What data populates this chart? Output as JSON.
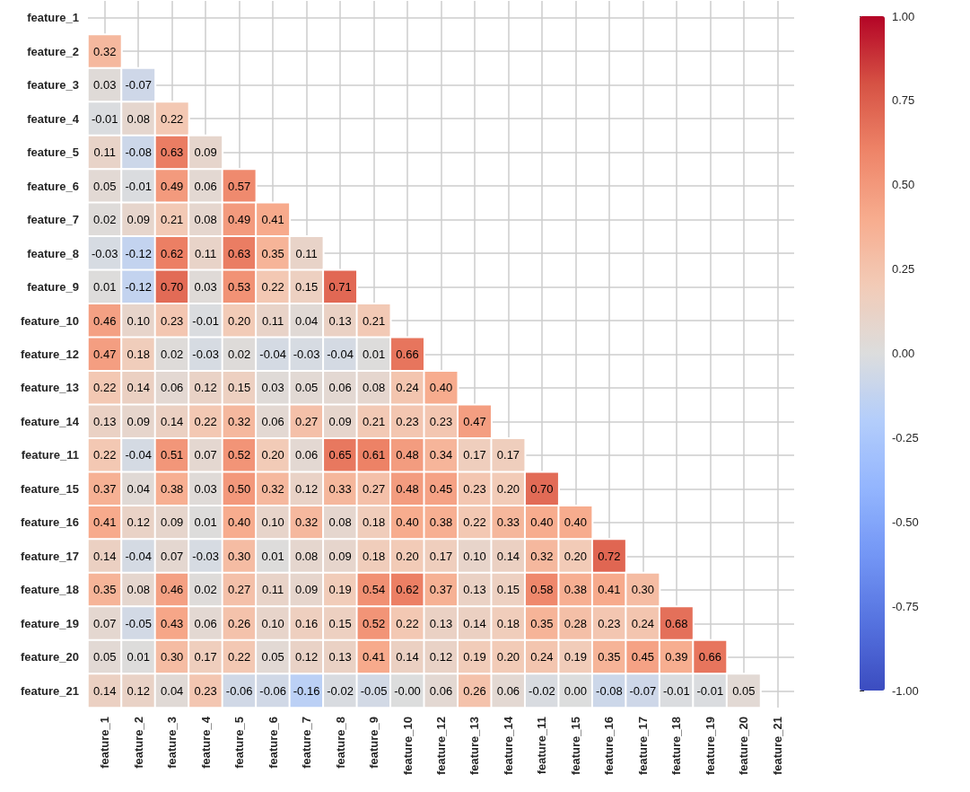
{
  "chart_data": {
    "type": "heatmap",
    "categories": [
      "feature_1",
      "feature_2",
      "feature_3",
      "feature_4",
      "feature_5",
      "feature_6",
      "feature_7",
      "feature_8",
      "feature_9",
      "feature_10",
      "feature_12",
      "feature_13",
      "feature_14",
      "feature_11",
      "feature_15",
      "feature_16",
      "feature_17",
      "feature_18",
      "feature_19",
      "feature_20",
      "feature_21"
    ],
    "y_categories": [
      "feature_1",
      "feature_2",
      "feature_3",
      "feature_4",
      "feature_5",
      "feature_6",
      "feature_7",
      "feature_8",
      "feature_9",
      "feature_10",
      "feature_12",
      "feature_13",
      "feature_14",
      "feature_11",
      "feature_15",
      "feature_16",
      "feature_17",
      "feature_18",
      "feature_19",
      "feature_20",
      "feature_21"
    ],
    "cells": [
      [
        null,
        null,
        null,
        null,
        null,
        null,
        null,
        null,
        null,
        null,
        null,
        null,
        null,
        null,
        null,
        null,
        null,
        null,
        null,
        null,
        null
      ],
      [
        0.32,
        null,
        null,
        null,
        null,
        null,
        null,
        null,
        null,
        null,
        null,
        null,
        null,
        null,
        null,
        null,
        null,
        null,
        null,
        null,
        null
      ],
      [
        0.03,
        -0.07,
        null,
        null,
        null,
        null,
        null,
        null,
        null,
        null,
        null,
        null,
        null,
        null,
        null,
        null,
        null,
        null,
        null,
        null,
        null
      ],
      [
        -0.01,
        0.08,
        0.22,
        null,
        null,
        null,
        null,
        null,
        null,
        null,
        null,
        null,
        null,
        null,
        null,
        null,
        null,
        null,
        null,
        null,
        null
      ],
      [
        0.11,
        -0.08,
        0.63,
        0.09,
        null,
        null,
        null,
        null,
        null,
        null,
        null,
        null,
        null,
        null,
        null,
        null,
        null,
        null,
        null,
        null,
        null
      ],
      [
        0.05,
        -0.01,
        0.49,
        0.06,
        0.57,
        null,
        null,
        null,
        null,
        null,
        null,
        null,
        null,
        null,
        null,
        null,
        null,
        null,
        null,
        null,
        null
      ],
      [
        0.02,
        0.09,
        0.21,
        0.08,
        0.49,
        0.41,
        null,
        null,
        null,
        null,
        null,
        null,
        null,
        null,
        null,
        null,
        null,
        null,
        null,
        null,
        null
      ],
      [
        -0.03,
        -0.12,
        0.62,
        0.11,
        0.63,
        0.35,
        0.11,
        null,
        null,
        null,
        null,
        null,
        null,
        null,
        null,
        null,
        null,
        null,
        null,
        null,
        null
      ],
      [
        0.01,
        -0.12,
        0.7,
        0.03,
        0.53,
        0.22,
        0.15,
        0.71,
        null,
        null,
        null,
        null,
        null,
        null,
        null,
        null,
        null,
        null,
        null,
        null,
        null
      ],
      [
        0.46,
        0.1,
        0.23,
        -0.01,
        0.2,
        0.11,
        0.04,
        0.13,
        0.21,
        null,
        null,
        null,
        null,
        null,
        null,
        null,
        null,
        null,
        null,
        null,
        null
      ],
      [
        0.47,
        0.18,
        0.02,
        -0.03,
        0.02,
        -0.04,
        -0.03,
        -0.04,
        0.01,
        0.66,
        null,
        null,
        null,
        null,
        null,
        null,
        null,
        null,
        null,
        null,
        null
      ],
      [
        0.22,
        0.14,
        0.06,
        0.12,
        0.15,
        0.03,
        0.05,
        0.06,
        0.08,
        0.24,
        0.4,
        null,
        null,
        null,
        null,
        null,
        null,
        null,
        null,
        null,
        null
      ],
      [
        0.13,
        0.09,
        0.14,
        0.22,
        0.32,
        0.06,
        0.27,
        0.09,
        0.21,
        0.23,
        0.23,
        0.47,
        null,
        null,
        null,
        null,
        null,
        null,
        null,
        null,
        null
      ],
      [
        0.22,
        -0.04,
        0.51,
        0.07,
        0.52,
        0.2,
        0.06,
        0.65,
        0.61,
        0.48,
        0.34,
        0.17,
        0.17,
        null,
        null,
        null,
        null,
        null,
        null,
        null,
        null
      ],
      [
        0.37,
        0.04,
        0.38,
        0.03,
        0.5,
        0.32,
        0.12,
        0.33,
        0.27,
        0.48,
        0.45,
        0.23,
        0.2,
        0.7,
        null,
        null,
        null,
        null,
        null,
        null,
        null
      ],
      [
        0.41,
        0.12,
        0.09,
        0.01,
        0.4,
        0.1,
        0.32,
        0.08,
        0.18,
        0.4,
        0.38,
        0.22,
        0.33,
        0.4,
        0.4,
        null,
        null,
        null,
        null,
        null,
        null
      ],
      [
        0.14,
        -0.04,
        0.07,
        -0.03,
        0.3,
        0.01,
        0.08,
        0.09,
        0.18,
        0.2,
        0.17,
        0.1,
        0.14,
        0.32,
        0.2,
        0.72,
        null,
        null,
        null,
        null,
        null
      ],
      [
        0.35,
        0.08,
        0.46,
        0.02,
        0.27,
        0.11,
        0.09,
        0.19,
        0.54,
        0.62,
        0.37,
        0.13,
        0.15,
        0.58,
        0.38,
        0.41,
        0.3,
        null,
        null,
        null,
        null
      ],
      [
        0.07,
        -0.05,
        0.43,
        0.06,
        0.26,
        0.1,
        0.16,
        0.15,
        0.52,
        0.22,
        0.13,
        0.14,
        0.18,
        0.35,
        0.28,
        0.23,
        0.24,
        0.68,
        null,
        null,
        null
      ],
      [
        0.05,
        0.01,
        0.3,
        0.17,
        0.22,
        0.05,
        0.12,
        0.13,
        0.41,
        0.14,
        0.12,
        0.19,
        0.2,
        0.24,
        0.19,
        0.35,
        0.45,
        0.39,
        0.66,
        null,
        null
      ],
      [
        0.14,
        0.12,
        0.04,
        0.23,
        -0.06,
        -0.06,
        -0.16,
        -0.02,
        -0.05,
        0,
        0.06,
        0.26,
        0.06,
        -0.02,
        0.0,
        -0.08,
        -0.07,
        -0.01,
        -0.01,
        0.05,
        null
      ]
    ],
    "cell_labels": [
      [
        null,
        null,
        null,
        null,
        null,
        null,
        null,
        null,
        null,
        null,
        null,
        null,
        null,
        null,
        null,
        null,
        null,
        null,
        null,
        null,
        null
      ],
      [
        "0.32",
        null,
        null,
        null,
        null,
        null,
        null,
        null,
        null,
        null,
        null,
        null,
        null,
        null,
        null,
        null,
        null,
        null,
        null,
        null,
        null
      ],
      [
        "0.03",
        "-0.07",
        null,
        null,
        null,
        null,
        null,
        null,
        null,
        null,
        null,
        null,
        null,
        null,
        null,
        null,
        null,
        null,
        null,
        null,
        null
      ],
      [
        "-0.01",
        "0.08",
        "0.22",
        null,
        null,
        null,
        null,
        null,
        null,
        null,
        null,
        null,
        null,
        null,
        null,
        null,
        null,
        null,
        null,
        null,
        null
      ],
      [
        "0.11",
        "-0.08",
        "0.63",
        "0.09",
        null,
        null,
        null,
        null,
        null,
        null,
        null,
        null,
        null,
        null,
        null,
        null,
        null,
        null,
        null,
        null,
        null
      ],
      [
        "0.05",
        "-0.01",
        "0.49",
        "0.06",
        "0.57",
        null,
        null,
        null,
        null,
        null,
        null,
        null,
        null,
        null,
        null,
        null,
        null,
        null,
        null,
        null,
        null
      ],
      [
        "0.02",
        "0.09",
        "0.21",
        "0.08",
        "0.49",
        "0.41",
        null,
        null,
        null,
        null,
        null,
        null,
        null,
        null,
        null,
        null,
        null,
        null,
        null,
        null,
        null
      ],
      [
        "-0.03",
        "-0.12",
        "0.62",
        "0.11",
        "0.63",
        "0.35",
        "0.11",
        null,
        null,
        null,
        null,
        null,
        null,
        null,
        null,
        null,
        null,
        null,
        null,
        null,
        null
      ],
      [
        "0.01",
        "-0.12",
        "0.70",
        "0.03",
        "0.53",
        "0.22",
        "0.15",
        "0.71",
        null,
        null,
        null,
        null,
        null,
        null,
        null,
        null,
        null,
        null,
        null,
        null,
        null
      ],
      [
        "0.46",
        "0.10",
        "0.23",
        "-0.01",
        "0.20",
        "0.11",
        "0.04",
        "0.13",
        "0.21",
        null,
        null,
        null,
        null,
        null,
        null,
        null,
        null,
        null,
        null,
        null,
        null
      ],
      [
        "0.47",
        "0.18",
        "0.02",
        "-0.03",
        "0.02",
        "-0.04",
        "-0.03",
        "-0.04",
        "0.01",
        "0.66",
        null,
        null,
        null,
        null,
        null,
        null,
        null,
        null,
        null,
        null,
        null
      ],
      [
        "0.22",
        "0.14",
        "0.06",
        "0.12",
        "0.15",
        "0.03",
        "0.05",
        "0.06",
        "0.08",
        "0.24",
        "0.40",
        null,
        null,
        null,
        null,
        null,
        null,
        null,
        null,
        null,
        null
      ],
      [
        "0.13",
        "0.09",
        "0.14",
        "0.22",
        "0.32",
        "0.06",
        "0.27",
        "0.09",
        "0.21",
        "0.23",
        "0.23",
        "0.47",
        null,
        null,
        null,
        null,
        null,
        null,
        null,
        null,
        null
      ],
      [
        "0.22",
        "-0.04",
        "0.51",
        "0.07",
        "0.52",
        "0.20",
        "0.06",
        "0.65",
        "0.61",
        "0.48",
        "0.34",
        "0.17",
        "0.17",
        null,
        null,
        null,
        null,
        null,
        null,
        null,
        null
      ],
      [
        "0.37",
        "0.04",
        "0.38",
        "0.03",
        "0.50",
        "0.32",
        "0.12",
        "0.33",
        "0.27",
        "0.48",
        "0.45",
        "0.23",
        "0.20",
        "0.70",
        null,
        null,
        null,
        null,
        null,
        null,
        null
      ],
      [
        "0.41",
        "0.12",
        "0.09",
        "0.01",
        "0.40",
        "0.10",
        "0.32",
        "0.08",
        "0.18",
        "0.40",
        "0.38",
        "0.22",
        "0.33",
        "0.40",
        "0.40",
        null,
        null,
        null,
        null,
        null,
        null
      ],
      [
        "0.14",
        "-0.04",
        "0.07",
        "-0.03",
        "0.30",
        "0.01",
        "0.08",
        "0.09",
        "0.18",
        "0.20",
        "0.17",
        "0.10",
        "0.14",
        "0.32",
        "0.20",
        "0.72",
        null,
        null,
        null,
        null,
        null
      ],
      [
        "0.35",
        "0.08",
        "0.46",
        "0.02",
        "0.27",
        "0.11",
        "0.09",
        "0.19",
        "0.54",
        "0.62",
        "0.37",
        "0.13",
        "0.15",
        "0.58",
        "0.38",
        "0.41",
        "0.30",
        null,
        null,
        null,
        null
      ],
      [
        "0.07",
        "-0.05",
        "0.43",
        "0.06",
        "0.26",
        "0.10",
        "0.16",
        "0.15",
        "0.52",
        "0.22",
        "0.13",
        "0.14",
        "0.18",
        "0.35",
        "0.28",
        "0.23",
        "0.24",
        "0.68",
        null,
        null,
        null
      ],
      [
        "0.05",
        "0.01",
        "0.30",
        "0.17",
        "0.22",
        "0.05",
        "0.12",
        "0.13",
        "0.41",
        "0.14",
        "0.12",
        "0.19",
        "0.20",
        "0.24",
        "0.19",
        "0.35",
        "0.45",
        "0.39",
        "0.66",
        null,
        null
      ],
      [
        "0.14",
        "0.12",
        "0.04",
        "0.23",
        "-0.06",
        "-0.06",
        "-0.16",
        "-0.02",
        "-0.05",
        "-0.00",
        "0.06",
        "0.26",
        "0.06",
        "-0.02",
        "0.00",
        "-0.08",
        "-0.07",
        "-0.01",
        "-0.01",
        "0.05",
        null
      ]
    ],
    "clim": [
      -1,
      1
    ],
    "cticks": [
      {
        "value": -1,
        "label": "-1.00"
      },
      {
        "value": -0.75,
        "label": "-0.75"
      },
      {
        "value": -0.5,
        "label": "-0.50"
      },
      {
        "value": -0.25,
        "label": "-0.25"
      },
      {
        "value": 0,
        "label": "0.00"
      },
      {
        "value": 0.25,
        "label": "0.25"
      },
      {
        "value": 0.5,
        "label": "0.50"
      },
      {
        "value": 0.75,
        "label": "0.75"
      },
      {
        "value": 1,
        "label": "1.00"
      }
    ],
    "grid": true
  }
}
